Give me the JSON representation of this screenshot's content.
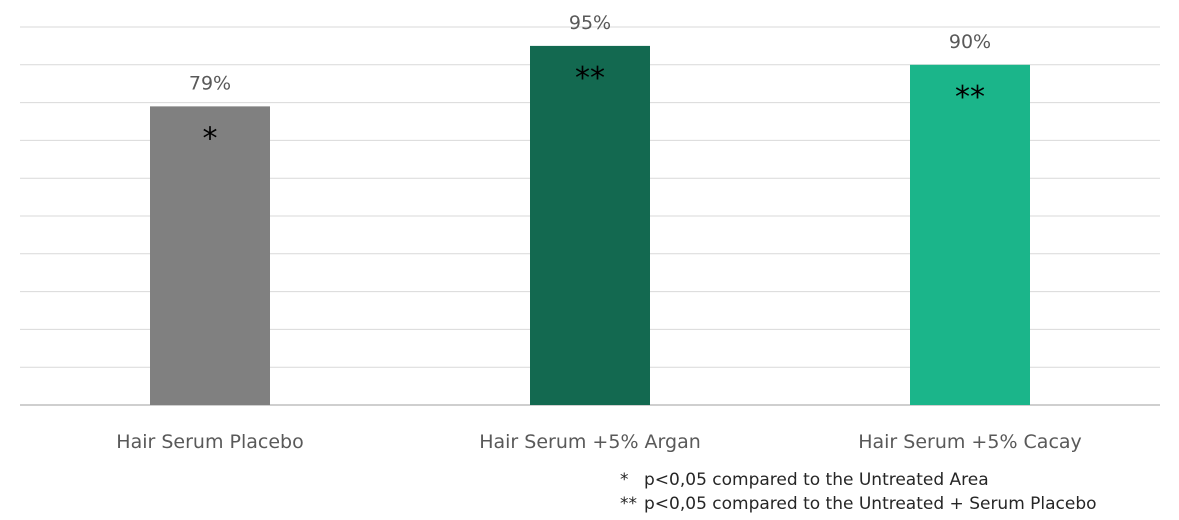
{
  "chart_data": {
    "type": "bar",
    "categories": [
      "Hair Serum Placebo",
      "Hair Serum +5% Argan",
      "Hair Serum +5% Cacay"
    ],
    "values": [
      79,
      95,
      90
    ],
    "value_labels": [
      "79%",
      "95%",
      "90%"
    ],
    "significance": [
      "*",
      "**",
      "**"
    ],
    "colors": [
      "#808080",
      "#136950",
      "#1bb58a"
    ],
    "ylim": [
      0,
      100
    ],
    "grid": true,
    "title": "",
    "xlabel": "",
    "ylabel": ""
  },
  "footnotes": [
    {
      "mark": "*",
      "text": "p<0,05 compared to the Untreated Area"
    },
    {
      "mark": "**",
      "text": "p<0,05 compared to the Untreated + Serum Placebo"
    }
  ]
}
